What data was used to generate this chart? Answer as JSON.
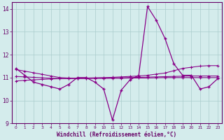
{
  "x": [
    0,
    1,
    2,
    3,
    4,
    5,
    6,
    7,
    8,
    9,
    10,
    11,
    12,
    13,
    14,
    15,
    16,
    17,
    18,
    19,
    20,
    21,
    22,
    23
  ],
  "main_line": [
    11.4,
    11.1,
    10.8,
    10.7,
    10.6,
    10.5,
    10.7,
    11.0,
    11.0,
    10.8,
    10.5,
    9.15,
    10.45,
    10.9,
    11.1,
    14.1,
    13.5,
    12.7,
    11.6,
    11.1,
    11.1,
    10.5,
    10.6,
    10.95
  ],
  "trend1": [
    11.35,
    11.28,
    11.21,
    11.14,
    11.07,
    11.0,
    10.98,
    10.97,
    10.97,
    10.97,
    10.97,
    10.97,
    10.97,
    10.98,
    10.98,
    10.98,
    10.99,
    11.0,
    11.0,
    11.0,
    11.0,
    11.0,
    11.0,
    11.0
  ],
  "trend2": [
    11.05,
    11.03,
    11.01,
    10.99,
    10.97,
    10.96,
    10.96,
    10.96,
    10.96,
    10.97,
    10.97,
    10.98,
    10.99,
    11.0,
    11.01,
    11.02,
    11.03,
    11.04,
    11.05,
    11.06,
    11.07,
    11.07,
    11.07,
    11.07
  ],
  "trend3": [
    10.85,
    10.88,
    10.9,
    10.92,
    10.94,
    10.95,
    10.96,
    10.97,
    10.98,
    10.99,
    11.0,
    11.01,
    11.03,
    11.05,
    11.07,
    11.1,
    11.15,
    11.2,
    11.3,
    11.4,
    11.45,
    11.5,
    11.52,
    11.52
  ],
  "line_color": "#880088",
  "bg_color": "#d4ecec",
  "grid_color": "#aacccc",
  "xlabel": "Windchill (Refroidissement éolien,°C)",
  "ylim": [
    9.0,
    14.3
  ],
  "xlim": [
    -0.5,
    23.5
  ],
  "yticks": [
    9,
    10,
    11,
    12,
    13,
    14
  ],
  "xticks": [
    0,
    1,
    2,
    3,
    4,
    5,
    6,
    7,
    8,
    9,
    10,
    11,
    12,
    13,
    14,
    15,
    16,
    17,
    18,
    19,
    20,
    21,
    22,
    23
  ],
  "xtick_labels": [
    "0",
    "1",
    "2",
    "3",
    "4",
    "5",
    "6",
    "7",
    "8",
    "9",
    "10",
    "11",
    "12",
    "13",
    "14",
    "15",
    "16",
    "17",
    "18",
    "19",
    "20",
    "21",
    "22",
    "23"
  ]
}
